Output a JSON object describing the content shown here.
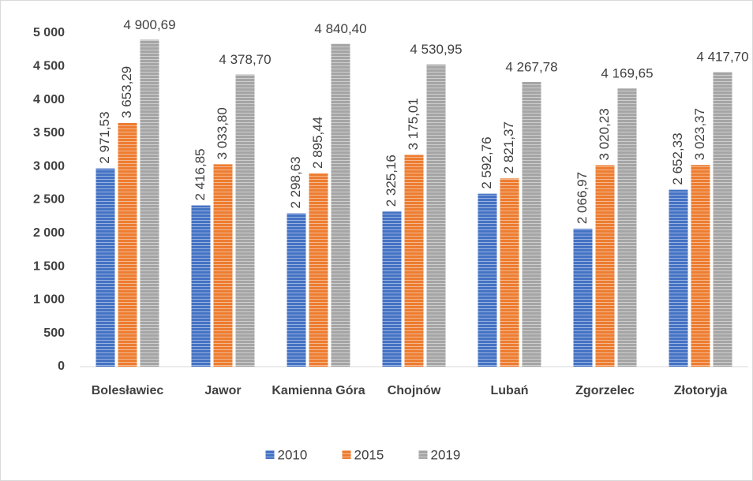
{
  "chart_data": {
    "type": "bar",
    "categories": [
      "Bolesławiec",
      "Jawor",
      "Kamienna Góra",
      "Chojnów",
      "Lubań",
      "Zgorzelec",
      "Złotoryja"
    ],
    "series": [
      {
        "name": "2010",
        "color": "#4472c4",
        "values": [
          2971.53,
          2416.85,
          2298.63,
          2325.16,
          2592.76,
          2066.97,
          2652.33
        ],
        "value_labels": [
          "2 971,53",
          "2 416,85",
          "2 298,63",
          "2 325,16",
          "2 592,76",
          "2 066,97",
          "2 652,33"
        ]
      },
      {
        "name": "2015",
        "color": "#ed7d31",
        "values": [
          3653.29,
          3033.8,
          2895.44,
          3175.01,
          2821.37,
          3020.23,
          3023.37
        ],
        "value_labels": [
          "3 653,29",
          "3 033,80",
          "2 895,44",
          "3 175,01",
          "2 821,37",
          "3 020,23",
          "3 023,37"
        ]
      },
      {
        "name": "2019",
        "color": "#a5a5a5",
        "values": [
          4900.69,
          4378.7,
          4840.4,
          4530.95,
          4267.78,
          4169.65,
          4417.7
        ],
        "value_labels": [
          "4 900,69",
          "4 378,70",
          "4 840,40",
          "4 530,95",
          "4 267,78",
          "4 169,65",
          "4 417,70"
        ]
      }
    ],
    "ylim": [
      0,
      5000
    ],
    "yticks": [
      0,
      500,
      {
        "value": 1000,
        "label": "1 000"
      },
      {
        "value": 1500,
        "label": "1 500"
      },
      {
        "value": 2000,
        "label": "2 000"
      },
      {
        "value": 2500,
        "label": "2 500"
      },
      {
        "value": 3000,
        "label": "3 000"
      },
      {
        "value": 3500,
        "label": "3 500"
      },
      {
        "value": 4000,
        "label": "4 000"
      },
      {
        "value": 4500,
        "label": "4 500"
      },
      {
        "value": 5000,
        "label": "5 000"
      }
    ],
    "grid": false,
    "legend": "bottom"
  }
}
